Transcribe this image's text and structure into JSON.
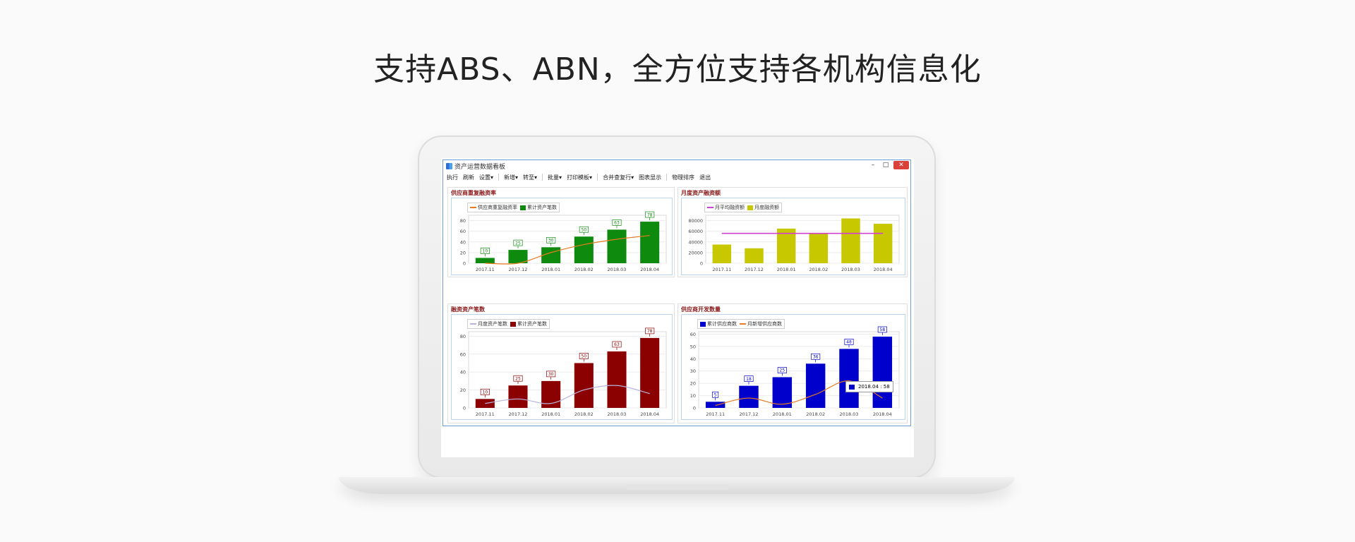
{
  "headline": "支持ABS、ABN，全方位支持各机构信息化",
  "window": {
    "title": "资产运营数据看板",
    "controls": {
      "minimize": "–",
      "maximize": "□",
      "close": "✕"
    }
  },
  "menu": [
    "执行",
    "刷新",
    "设置▾",
    "新增▾",
    "转至▾",
    "批量▾",
    "打印模板▾",
    "合并查复行▾",
    "图表显示",
    "物理排序",
    "退出"
  ],
  "panels": [
    {
      "title": "供应商重复融资率"
    },
    {
      "title": "月度资产融资额"
    },
    {
      "title": "融资资产笔数"
    },
    {
      "title": "供应商开发数量"
    }
  ],
  "colors": {
    "green": "#0e8a0e",
    "olive": "#c8c800",
    "darkred": "#8b0000",
    "blue": "#0000cc",
    "orange": "#e87b1f",
    "magenta": "#d040d0",
    "lavender": "#b9b5df"
  },
  "chart_data": [
    {
      "type": "bar",
      "categories": [
        "2017.11",
        "2017.12",
        "2018.01",
        "2018.02",
        "2018.03",
        "2018.04"
      ],
      "series": [
        {
          "name": "供应商重复融资率",
          "type": "line",
          "values": [
            0,
            0,
            20,
            35,
            45,
            52
          ]
        },
        {
          "name": "累计资产笔数",
          "type": "bar",
          "values": [
            10,
            25,
            30,
            50,
            63,
            78
          ]
        }
      ],
      "data_labels": [
        "10",
        "25",
        "30",
        "50",
        "63",
        "78"
      ],
      "ylim": [
        0,
        90
      ],
      "yticks": [
        "0",
        "20",
        "40",
        "60",
        "80"
      ]
    },
    {
      "type": "bar",
      "categories": [
        "2017.11",
        "2017.12",
        "2018.01",
        "2018.02",
        "2018.03",
        "2018.04"
      ],
      "series": [
        {
          "name": "月平均融资额",
          "type": "line",
          "values": [
            56000,
            56000,
            56000,
            56000,
            56000,
            56000
          ]
        },
        {
          "name": "月度融资额",
          "type": "bar",
          "values": [
            35000,
            28000,
            65000,
            57000,
            84000,
            74000
          ]
        }
      ],
      "ylim": [
        0,
        90000
      ],
      "yticks": [
        "0",
        "20000",
        "40000",
        "60000",
        "80000"
      ]
    },
    {
      "type": "bar",
      "categories": [
        "2017.11",
        "2017.12",
        "2018.01",
        "2018.02",
        "2018.03",
        "2018.04"
      ],
      "series": [
        {
          "name": "月度资产笔数",
          "type": "line",
          "values": [
            5,
            10,
            5,
            20,
            25,
            16
          ]
        },
        {
          "name": "累计资产笔数",
          "type": "bar",
          "values": [
            10,
            25,
            30,
            50,
            63,
            78
          ]
        }
      ],
      "data_labels": [
        "10",
        "25",
        "30",
        "50",
        "63",
        "78"
      ],
      "ylim": [
        0,
        85
      ],
      "yticks": [
        "0",
        "20",
        "40",
        "60",
        "80"
      ]
    },
    {
      "type": "bar",
      "categories": [
        "2017.11",
        "2017.12",
        "2018.01",
        "2018.02",
        "2018.03",
        "2018.04"
      ],
      "series": [
        {
          "name": "累计供应商数",
          "type": "bar",
          "values": [
            5,
            18,
            25,
            36,
            48,
            58
          ]
        },
        {
          "name": "月新增供应商数",
          "type": "line",
          "values": [
            2,
            8,
            3,
            11,
            22,
            8
          ]
        }
      ],
      "data_labels": [
        "5",
        "18",
        "25",
        "36",
        "48",
        "58"
      ],
      "ylim": [
        0,
        62
      ],
      "yticks": [
        "0",
        "10",
        "20",
        "30",
        "40",
        "50",
        "60"
      ],
      "tooltip": "2018.04 : 58"
    }
  ]
}
